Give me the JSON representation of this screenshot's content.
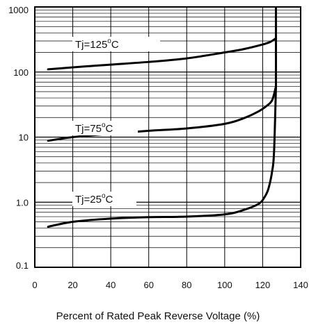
{
  "chart_data": {
    "type": "line",
    "title": "",
    "xlabel": "Percent of Rated Peak Reverse Voltage (%)",
    "ylabel": "",
    "x_ticks": [
      "0",
      "20",
      "40",
      "60",
      "80",
      "100",
      "120",
      "140"
    ],
    "y_ticks": [
      "0.1",
      "1.0",
      "10",
      "100",
      "1000"
    ],
    "xlim": [
      0,
      140
    ],
    "ylim": [
      0.1,
      1000
    ],
    "y_scale": "log",
    "grid": true,
    "legend": "none",
    "series": [
      {
        "name": "Tj=125°C",
        "label_text": "Tj=125",
        "label_sup": "o",
        "label_unit": "C",
        "x": [
          7,
          20,
          40,
          60,
          80,
          100,
          110,
          120,
          124,
          127
        ],
        "y": [
          110,
          118,
          130,
          143,
          162,
          200,
          225,
          265,
          290,
          330
        ]
      },
      {
        "name": "Tj=75°C",
        "label_text": "Tj=75",
        "label_sup": "o",
        "label_unit": "C",
        "x": [
          7,
          20,
          40,
          60,
          80,
          100,
          110,
          118,
          122,
          125,
          127
        ],
        "y": [
          8.8,
          10,
          11.3,
          12.5,
          13.6,
          16,
          19.5,
          25,
          30,
          37,
          60
        ]
      },
      {
        "name": "Tj=25°C",
        "label_text": "Tj=25",
        "label_sup": "o",
        "label_unit": "C",
        "x": [
          7,
          20,
          40,
          60,
          80,
          100,
          110,
          118,
          121,
          123,
          125,
          126,
          127
        ],
        "y": [
          0.42,
          0.5,
          0.56,
          0.59,
          0.6,
          0.65,
          0.76,
          0.95,
          1.2,
          1.6,
          3.0,
          6.0,
          60
        ]
      }
    ]
  }
}
